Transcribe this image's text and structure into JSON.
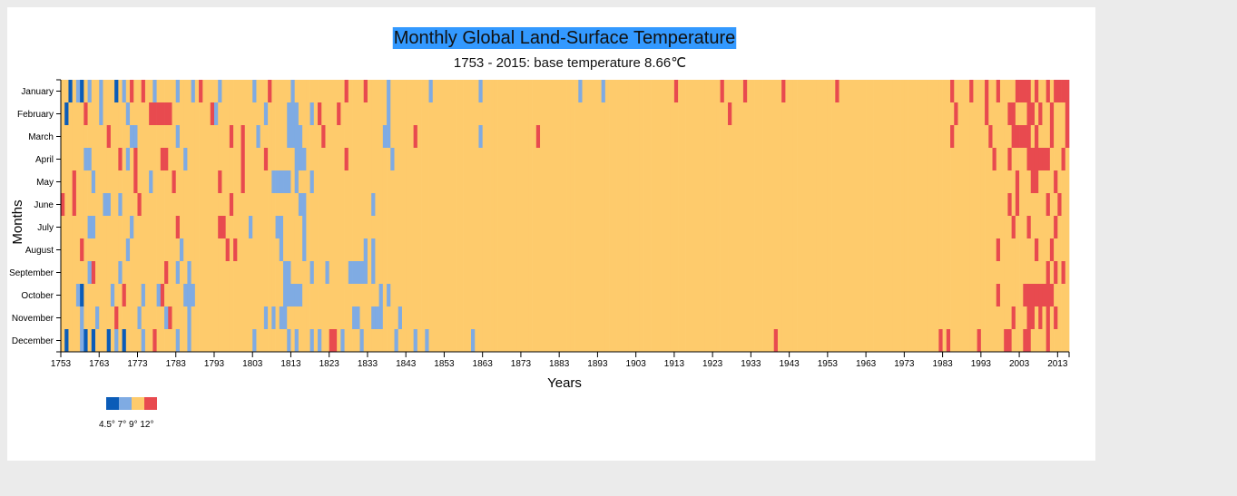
{
  "chart_data": {
    "type": "heatmap",
    "title": "Monthly Global Land-Surface Temperature",
    "subtitle": "1753 - 2015: base temperature 8.66℃",
    "xlabel": "Years",
    "ylabel": "Months",
    "x_range": [
      1753,
      2015
    ],
    "months": [
      "January",
      "February",
      "March",
      "April",
      "May",
      "June",
      "July",
      "August",
      "September",
      "October",
      "November",
      "December"
    ],
    "x_ticks": [
      1753,
      1763,
      1773,
      1783,
      1793,
      1803,
      1813,
      1823,
      1833,
      1843,
      1853,
      1863,
      1873,
      1883,
      1893,
      1903,
      1913,
      1923,
      1933,
      1943,
      1953,
      1963,
      1973,
      1983,
      1993,
      2003,
      2013
    ],
    "legend": {
      "thresholds": [
        4.5,
        7,
        9,
        12
      ],
      "labels": [
        "4.5°",
        "7°",
        "9°",
        "12°"
      ],
      "colors": [
        "#0b5cb8",
        "#7fabe3",
        "#fecb6c",
        "#e84a4f"
      ]
    },
    "color_bins": {
      "cold": "#0b5cb8",
      "cool": "#7fabe3",
      "warm": "#fecb6c",
      "hot": "#e84a4f"
    },
    "notable_cells": {
      "cold": [
        [
          1755,
          1
        ],
        [
          1758,
          1
        ],
        [
          1767,
          1
        ],
        [
          1754,
          2
        ],
        [
          1754,
          12
        ],
        [
          1759,
          12
        ],
        [
          1761,
          12
        ],
        [
          1765,
          12
        ],
        [
          1758,
          10
        ],
        [
          1769,
          12
        ]
      ],
      "cool": [
        [
          1757,
          1
        ],
        [
          1760,
          1
        ],
        [
          1763,
          1
        ],
        [
          1769,
          1
        ],
        [
          1777,
          1
        ],
        [
          1783,
          1
        ],
        [
          1787,
          1
        ],
        [
          1794,
          1
        ],
        [
          1803,
          1
        ],
        [
          1813,
          1
        ],
        [
          1838,
          1
        ],
        [
          1849,
          1
        ],
        [
          1862,
          1
        ],
        [
          1888,
          1
        ],
        [
          1894,
          1
        ],
        [
          1763,
          2
        ],
        [
          1770,
          2
        ],
        [
          1793,
          2
        ],
        [
          1806,
          2
        ],
        [
          1812,
          2
        ],
        [
          1813,
          2
        ],
        [
          1814,
          2
        ],
        [
          1818,
          2
        ],
        [
          1838,
          2
        ],
        [
          1771,
          3
        ],
        [
          1772,
          3
        ],
        [
          1783,
          3
        ],
        [
          1804,
          3
        ],
        [
          1812,
          3
        ],
        [
          1813,
          3
        ],
        [
          1814,
          3
        ],
        [
          1815,
          3
        ],
        [
          1837,
          3
        ],
        [
          1838,
          3
        ],
        [
          1862,
          3
        ],
        [
          1759,
          4
        ],
        [
          1760,
          4
        ],
        [
          1770,
          4
        ],
        [
          1785,
          4
        ],
        [
          1814,
          4
        ],
        [
          1815,
          4
        ],
        [
          1816,
          4
        ],
        [
          1839,
          4
        ],
        [
          1761,
          5
        ],
        [
          1776,
          5
        ],
        [
          1808,
          5
        ],
        [
          1809,
          5
        ],
        [
          1810,
          5
        ],
        [
          1811,
          5
        ],
        [
          1812,
          5
        ],
        [
          1814,
          5
        ],
        [
          1818,
          5
        ],
        [
          1764,
          6
        ],
        [
          1765,
          6
        ],
        [
          1768,
          6
        ],
        [
          1815,
          6
        ],
        [
          1816,
          6
        ],
        [
          1834,
          6
        ],
        [
          1760,
          7
        ],
        [
          1761,
          7
        ],
        [
          1771,
          7
        ],
        [
          1802,
          7
        ],
        [
          1809,
          7
        ],
        [
          1810,
          7
        ],
        [
          1816,
          7
        ],
        [
          1770,
          8
        ],
        [
          1784,
          8
        ],
        [
          1810,
          8
        ],
        [
          1816,
          8
        ],
        [
          1832,
          8
        ],
        [
          1834,
          8
        ],
        [
          1760,
          9
        ],
        [
          1768,
          9
        ],
        [
          1783,
          9
        ],
        [
          1786,
          9
        ],
        [
          1811,
          9
        ],
        [
          1812,
          9
        ],
        [
          1818,
          9
        ],
        [
          1822,
          9
        ],
        [
          1828,
          9
        ],
        [
          1829,
          9
        ],
        [
          1830,
          9
        ],
        [
          1831,
          9
        ],
        [
          1832,
          9
        ],
        [
          1834,
          9
        ],
        [
          1757,
          10
        ],
        [
          1766,
          10
        ],
        [
          1774,
          10
        ],
        [
          1778,
          10
        ],
        [
          1785,
          10
        ],
        [
          1786,
          10
        ],
        [
          1787,
          10
        ],
        [
          1811,
          10
        ],
        [
          1812,
          10
        ],
        [
          1813,
          10
        ],
        [
          1814,
          10
        ],
        [
          1815,
          10
        ],
        [
          1836,
          10
        ],
        [
          1838,
          10
        ],
        [
          1758,
          11
        ],
        [
          1762,
          11
        ],
        [
          1773,
          11
        ],
        [
          1780,
          11
        ],
        [
          1786,
          11
        ],
        [
          1806,
          11
        ],
        [
          1808,
          11
        ],
        [
          1810,
          11
        ],
        [
          1811,
          11
        ],
        [
          1829,
          11
        ],
        [
          1830,
          11
        ],
        [
          1834,
          11
        ],
        [
          1835,
          11
        ],
        [
          1836,
          11
        ],
        [
          1841,
          11
        ],
        [
          1758,
          12
        ],
        [
          1767,
          12
        ],
        [
          1774,
          12
        ],
        [
          1783,
          12
        ],
        [
          1786,
          12
        ],
        [
          1803,
          12
        ],
        [
          1812,
          12
        ],
        [
          1814,
          12
        ],
        [
          1818,
          12
        ],
        [
          1820,
          12
        ],
        [
          1826,
          12
        ],
        [
          1831,
          12
        ],
        [
          1840,
          12
        ],
        [
          1845,
          12
        ],
        [
          1848,
          12
        ],
        [
          1860,
          12
        ]
      ],
      "hot": [
        [
          1771,
          1
        ],
        [
          1774,
          1
        ],
        [
          1789,
          1
        ],
        [
          1807,
          1
        ],
        [
          1827,
          1
        ],
        [
          1832,
          1
        ],
        [
          1913,
          1
        ],
        [
          1925,
          1
        ],
        [
          1931,
          1
        ],
        [
          1941,
          1
        ],
        [
          1955,
          1
        ],
        [
          1985,
          1
        ],
        [
          1990,
          1
        ],
        [
          1994,
          1
        ],
        [
          1997,
          1
        ],
        [
          2002,
          1
        ],
        [
          2003,
          1
        ],
        [
          2004,
          1
        ],
        [
          2005,
          1
        ],
        [
          2007,
          1
        ],
        [
          2010,
          1
        ],
        [
          2012,
          1
        ],
        [
          2013,
          1
        ],
        [
          2014,
          1
        ],
        [
          2015,
          1
        ],
        [
          1759,
          2
        ],
        [
          1776,
          2
        ],
        [
          1777,
          2
        ],
        [
          1778,
          2
        ],
        [
          1779,
          2
        ],
        [
          1780,
          2
        ],
        [
          1781,
          2
        ],
        [
          1792,
          2
        ],
        [
          1820,
          2
        ],
        [
          1825,
          2
        ],
        [
          1927,
          2
        ],
        [
          1986,
          2
        ],
        [
          1994,
          2
        ],
        [
          2000,
          2
        ],
        [
          2001,
          2
        ],
        [
          2005,
          2
        ],
        [
          2006,
          2
        ],
        [
          2008,
          2
        ],
        [
          2011,
          2
        ],
        [
          2015,
          2
        ],
        [
          1765,
          3
        ],
        [
          1797,
          3
        ],
        [
          1800,
          3
        ],
        [
          1821,
          3
        ],
        [
          1845,
          3
        ],
        [
          1877,
          3
        ],
        [
          1985,
          3
        ],
        [
          1995,
          3
        ],
        [
          2001,
          3
        ],
        [
          2002,
          3
        ],
        [
          2003,
          3
        ],
        [
          2004,
          3
        ],
        [
          2005,
          3
        ],
        [
          2007,
          3
        ],
        [
          2011,
          3
        ],
        [
          2015,
          3
        ],
        [
          1768,
          4
        ],
        [
          1772,
          4
        ],
        [
          1779,
          4
        ],
        [
          1780,
          4
        ],
        [
          1800,
          4
        ],
        [
          1806,
          4
        ],
        [
          1827,
          4
        ],
        [
          1996,
          4
        ],
        [
          2000,
          4
        ],
        [
          2005,
          4
        ],
        [
          2006,
          4
        ],
        [
          2007,
          4
        ],
        [
          2008,
          4
        ],
        [
          2009,
          4
        ],
        [
          2010,
          4
        ],
        [
          2014,
          4
        ],
        [
          1756,
          5
        ],
        [
          1772,
          5
        ],
        [
          1782,
          5
        ],
        [
          1794,
          5
        ],
        [
          1800,
          5
        ],
        [
          2002,
          5
        ],
        [
          2006,
          5
        ],
        [
          2007,
          5
        ],
        [
          2012,
          5
        ],
        [
          1753,
          6
        ],
        [
          1756,
          6
        ],
        [
          1773,
          6
        ],
        [
          1797,
          6
        ],
        [
          2000,
          6
        ],
        [
          2002,
          6
        ],
        [
          2010,
          6
        ],
        [
          2013,
          6
        ],
        [
          1783,
          7
        ],
        [
          1794,
          7
        ],
        [
          1795,
          7
        ],
        [
          2001,
          7
        ],
        [
          2005,
          7
        ],
        [
          2012,
          7
        ],
        [
          1758,
          8
        ],
        [
          1796,
          8
        ],
        [
          1798,
          8
        ],
        [
          1997,
          8
        ],
        [
          2007,
          8
        ],
        [
          2011,
          8
        ],
        [
          1761,
          9
        ],
        [
          1780,
          9
        ],
        [
          2010,
          9
        ],
        [
          2012,
          9
        ],
        [
          2014,
          9
        ],
        [
          1769,
          10
        ],
        [
          1779,
          10
        ],
        [
          1997,
          10
        ],
        [
          2004,
          10
        ],
        [
          2005,
          10
        ],
        [
          2006,
          10
        ],
        [
          2007,
          10
        ],
        [
          2008,
          10
        ],
        [
          2009,
          10
        ],
        [
          2010,
          10
        ],
        [
          2011,
          10
        ],
        [
          1767,
          11
        ],
        [
          1781,
          11
        ],
        [
          2001,
          11
        ],
        [
          2005,
          11
        ],
        [
          2006,
          11
        ],
        [
          2008,
          11
        ],
        [
          2010,
          11
        ],
        [
          2012,
          11
        ],
        [
          1777,
          12
        ],
        [
          1823,
          12
        ],
        [
          1824,
          12
        ],
        [
          1939,
          12
        ],
        [
          1982,
          12
        ],
        [
          1984,
          12
        ],
        [
          1992,
          12
        ],
        [
          1999,
          12
        ],
        [
          2000,
          12
        ],
        [
          2004,
          12
        ],
        [
          2005,
          12
        ],
        [
          2010,
          12
        ]
      ]
    }
  }
}
